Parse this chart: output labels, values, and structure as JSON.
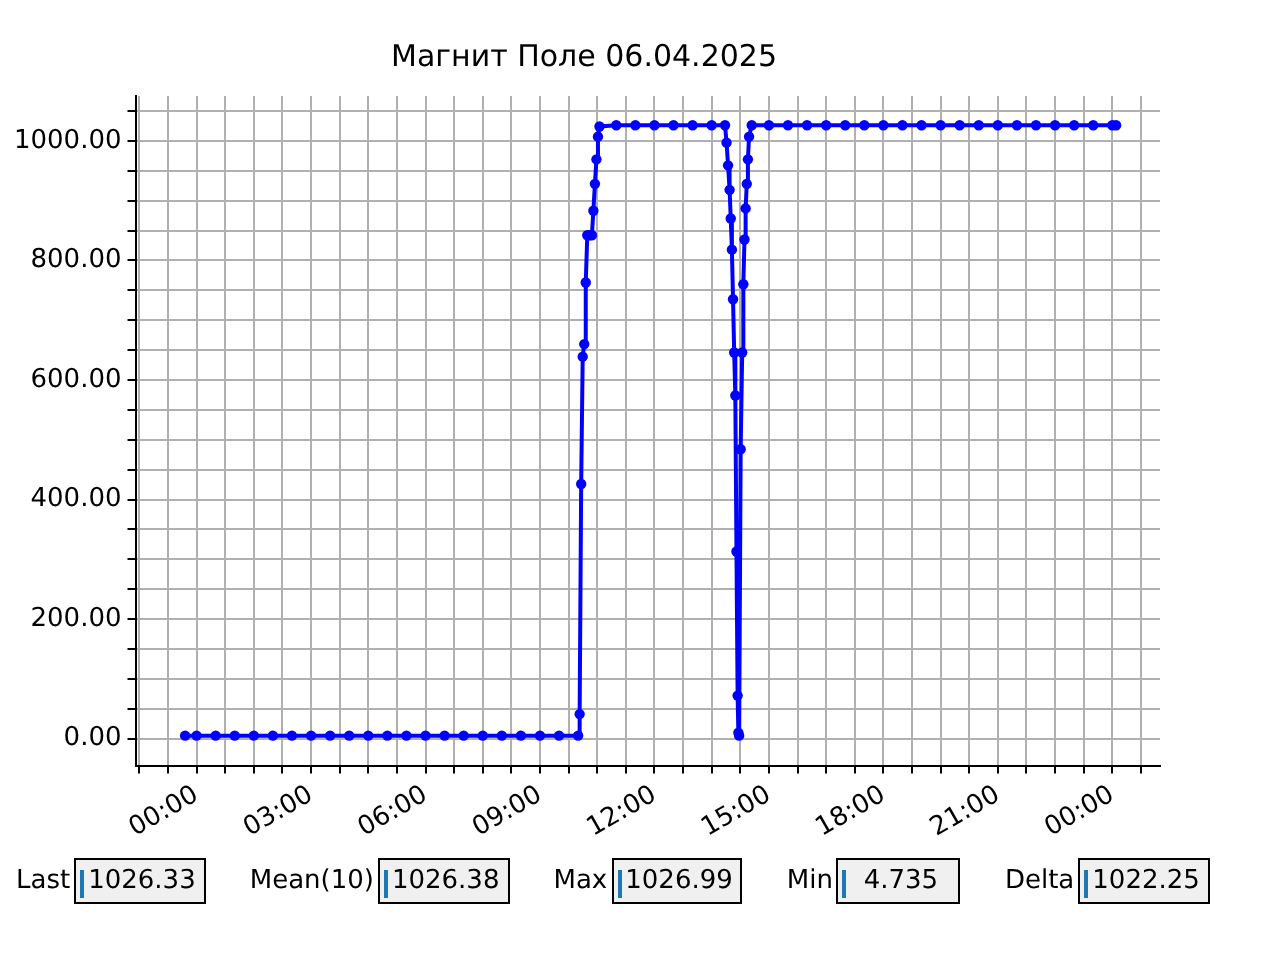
{
  "chart_data": {
    "type": "line",
    "title": "Магнит Поле 06.04.2025",
    "grid": true,
    "marker": "circle",
    "line_style": "solid",
    "legend": false,
    "xlim": [
      -1.6,
      25.25
    ],
    "xticks": [
      {
        "value": -1.5,
        "label": null
      },
      {
        "value": -0.75,
        "label": null
      },
      {
        "value": 0,
        "label": "00:00"
      },
      {
        "value": 0.75,
        "label": null
      },
      {
        "value": 1.5,
        "label": null
      },
      {
        "value": 2.25,
        "label": null
      },
      {
        "value": 3,
        "label": "03:00"
      },
      {
        "value": 3.75,
        "label": null
      },
      {
        "value": 4.5,
        "label": null
      },
      {
        "value": 5.25,
        "label": null
      },
      {
        "value": 6,
        "label": "06:00"
      },
      {
        "value": 6.75,
        "label": null
      },
      {
        "value": 7.5,
        "label": null
      },
      {
        "value": 8.25,
        "label": null
      },
      {
        "value": 9,
        "label": "09:00"
      },
      {
        "value": 9.75,
        "label": null
      },
      {
        "value": 10.5,
        "label": null
      },
      {
        "value": 11.25,
        "label": null
      },
      {
        "value": 12,
        "label": "12:00"
      },
      {
        "value": 12.75,
        "label": null
      },
      {
        "value": 13.5,
        "label": null
      },
      {
        "value": 14.25,
        "label": null
      },
      {
        "value": 15,
        "label": "15:00"
      },
      {
        "value": 15.75,
        "label": null
      },
      {
        "value": 16.5,
        "label": null
      },
      {
        "value": 17.25,
        "label": null
      },
      {
        "value": 18,
        "label": "18:00"
      },
      {
        "value": 18.75,
        "label": null
      },
      {
        "value": 19.5,
        "label": null
      },
      {
        "value": 20.25,
        "label": null
      },
      {
        "value": 21,
        "label": "21:00"
      },
      {
        "value": 21.75,
        "label": null
      },
      {
        "value": 22.5,
        "label": null
      },
      {
        "value": 23.25,
        "label": null
      },
      {
        "value": 24,
        "label": "00:00"
      },
      {
        "value": 24.75,
        "label": null
      }
    ],
    "ylim": [
      -45,
      1075
    ],
    "yticks": [
      {
        "value": 0,
        "label": "0.00"
      },
      {
        "value": 50,
        "label": null
      },
      {
        "value": 100,
        "label": null
      },
      {
        "value": 150,
        "label": null
      },
      {
        "value": 200,
        "label": "200.00"
      },
      {
        "value": 250,
        "label": null
      },
      {
        "value": 300,
        "label": null
      },
      {
        "value": 350,
        "label": null
      },
      {
        "value": 400,
        "label": "400.00"
      },
      {
        "value": 450,
        "label": null
      },
      {
        "value": 500,
        "label": null
      },
      {
        "value": 550,
        "label": null
      },
      {
        "value": 600,
        "label": "600.00"
      },
      {
        "value": 650,
        "label": null
      },
      {
        "value": 700,
        "label": null
      },
      {
        "value": 750,
        "label": null
      },
      {
        "value": 800,
        "label": "800.00"
      },
      {
        "value": 850,
        "label": null
      },
      {
        "value": 900,
        "label": null
      },
      {
        "value": 950,
        "label": null
      },
      {
        "value": 1000,
        "label": "1000.00"
      },
      {
        "value": 1050,
        "label": null
      }
    ],
    "series": [
      {
        "color": "#0000ff",
        "x": [
          -0.3,
          0,
          0.5,
          1,
          1.5,
          2,
          2.5,
          3,
          3.5,
          4,
          4.5,
          5,
          5.5,
          6,
          6.5,
          7,
          7.5,
          8,
          8.5,
          9,
          9.5,
          10,
          10.04,
          10.08,
          10.12,
          10.16,
          10.2,
          10.24,
          10.3,
          10.36,
          10.4,
          10.44,
          10.48,
          10.52,
          10.56,
          11,
          11.5,
          12,
          12.5,
          13,
          13.5,
          13.85,
          13.89,
          13.93,
          13.97,
          14.0,
          14.03,
          14.06,
          14.09,
          14.12,
          14.15,
          14.18,
          14.2,
          14.22,
          14.26,
          14.3,
          14.33,
          14.36,
          14.39,
          14.42,
          14.45,
          14.48,
          14.55,
          15,
          15.5,
          16,
          16.5,
          17,
          17.5,
          18,
          18.5,
          19,
          19.5,
          20,
          20.5,
          21,
          21.5,
          22,
          22.5,
          23,
          23.5,
          24,
          24.1
        ],
        "values": [
          5,
          5,
          5,
          5,
          5,
          5,
          5,
          5,
          5,
          5,
          5,
          5,
          5,
          5,
          5,
          5,
          5,
          5,
          5,
          5,
          5,
          5,
          41,
          426,
          639,
          660,
          763,
          842,
          842,
          842,
          883,
          928,
          969,
          1007,
          1024,
          1026,
          1026,
          1026,
          1026,
          1026,
          1026,
          1026,
          997,
          959,
          918,
          870,
          818,
          735,
          646,
          574,
          313,
          72,
          10,
          5,
          484,
          646,
          760,
          835,
          887,
          928,
          969,
          1007,
          1026,
          1026,
          1026,
          1026,
          1026,
          1026,
          1026,
          1026,
          1026,
          1026,
          1026,
          1026,
          1026,
          1026,
          1026,
          1026,
          1026,
          1026,
          1026,
          1026,
          1026
        ]
      }
    ],
    "annotations": [
      "Last",
      "1026.33",
      "Mean(10)",
      "1026.38",
      "Max",
      "1026.99",
      "Min",
      "4.735",
      "Delta",
      "1022.25"
    ]
  }
}
